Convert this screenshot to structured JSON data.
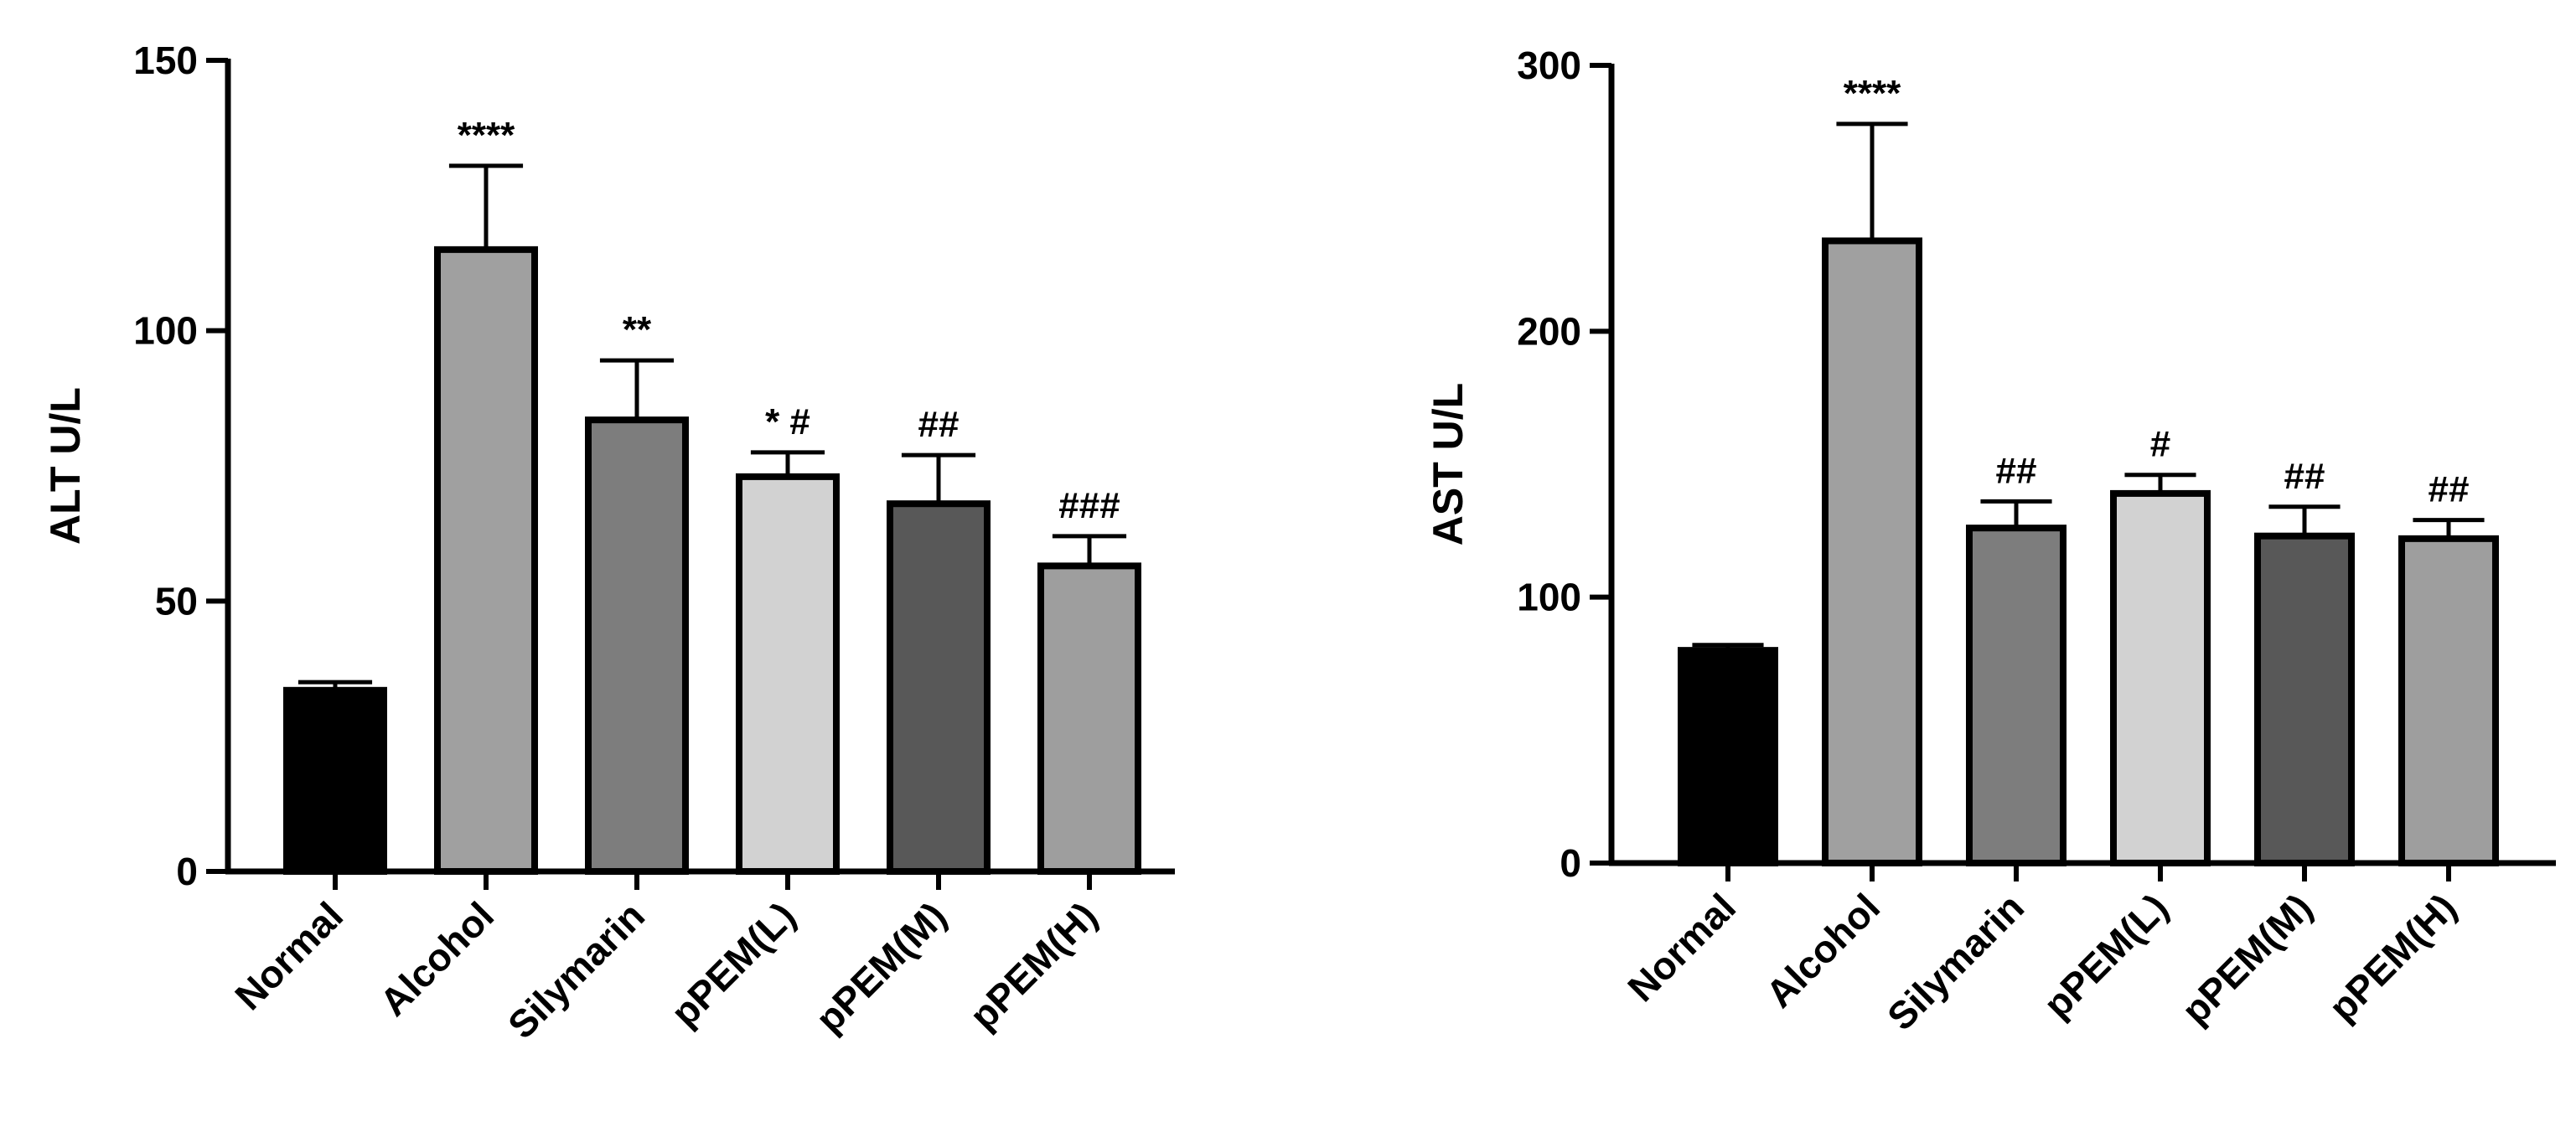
{
  "chart_data": [
    {
      "type": "bar",
      "ylabel": "ALT U/L",
      "ylim": [
        0,
        150
      ],
      "yticks": [
        0,
        50,
        100,
        150
      ],
      "categories": [
        "Normal",
        "Alcohol",
        "Silymarin",
        "pPEM(L)",
        "pPEM(M)",
        "pPEM(H)"
      ],
      "values": [
        33.5,
        115,
        83.5,
        73,
        68,
        56.5
      ],
      "errors": [
        1.5,
        15.5,
        11,
        4.5,
        9,
        5.5
      ],
      "annotations": [
        "",
        "****",
        "**",
        "*   #",
        "##",
        "###"
      ],
      "colors": [
        "#000000",
        "#a0a0a0",
        "#7d7d7d",
        "#d2d2d2",
        "#585858",
        "#9e9e9e"
      ],
      "grid": false
    },
    {
      "type": "bar",
      "ylabel": "AST U/L",
      "ylim": [
        0,
        300
      ],
      "yticks": [
        0,
        100,
        200,
        300
      ],
      "categories": [
        "Normal",
        "Alcohol",
        "Silymarin",
        "pPEM(L)",
        "pPEM(M)",
        "pPEM(H)"
      ],
      "values": [
        80,
        234,
        126,
        139,
        123,
        122
      ],
      "errors": [
        2,
        44,
        10,
        7,
        11,
        7
      ],
      "annotations": [
        "",
        "****",
        "##",
        "#",
        "##",
        "##"
      ],
      "colors": [
        "#000000",
        "#a0a0a0",
        "#7d7d7d",
        "#d2d2d2",
        "#585858",
        "#9e9e9e"
      ],
      "grid": false
    }
  ]
}
